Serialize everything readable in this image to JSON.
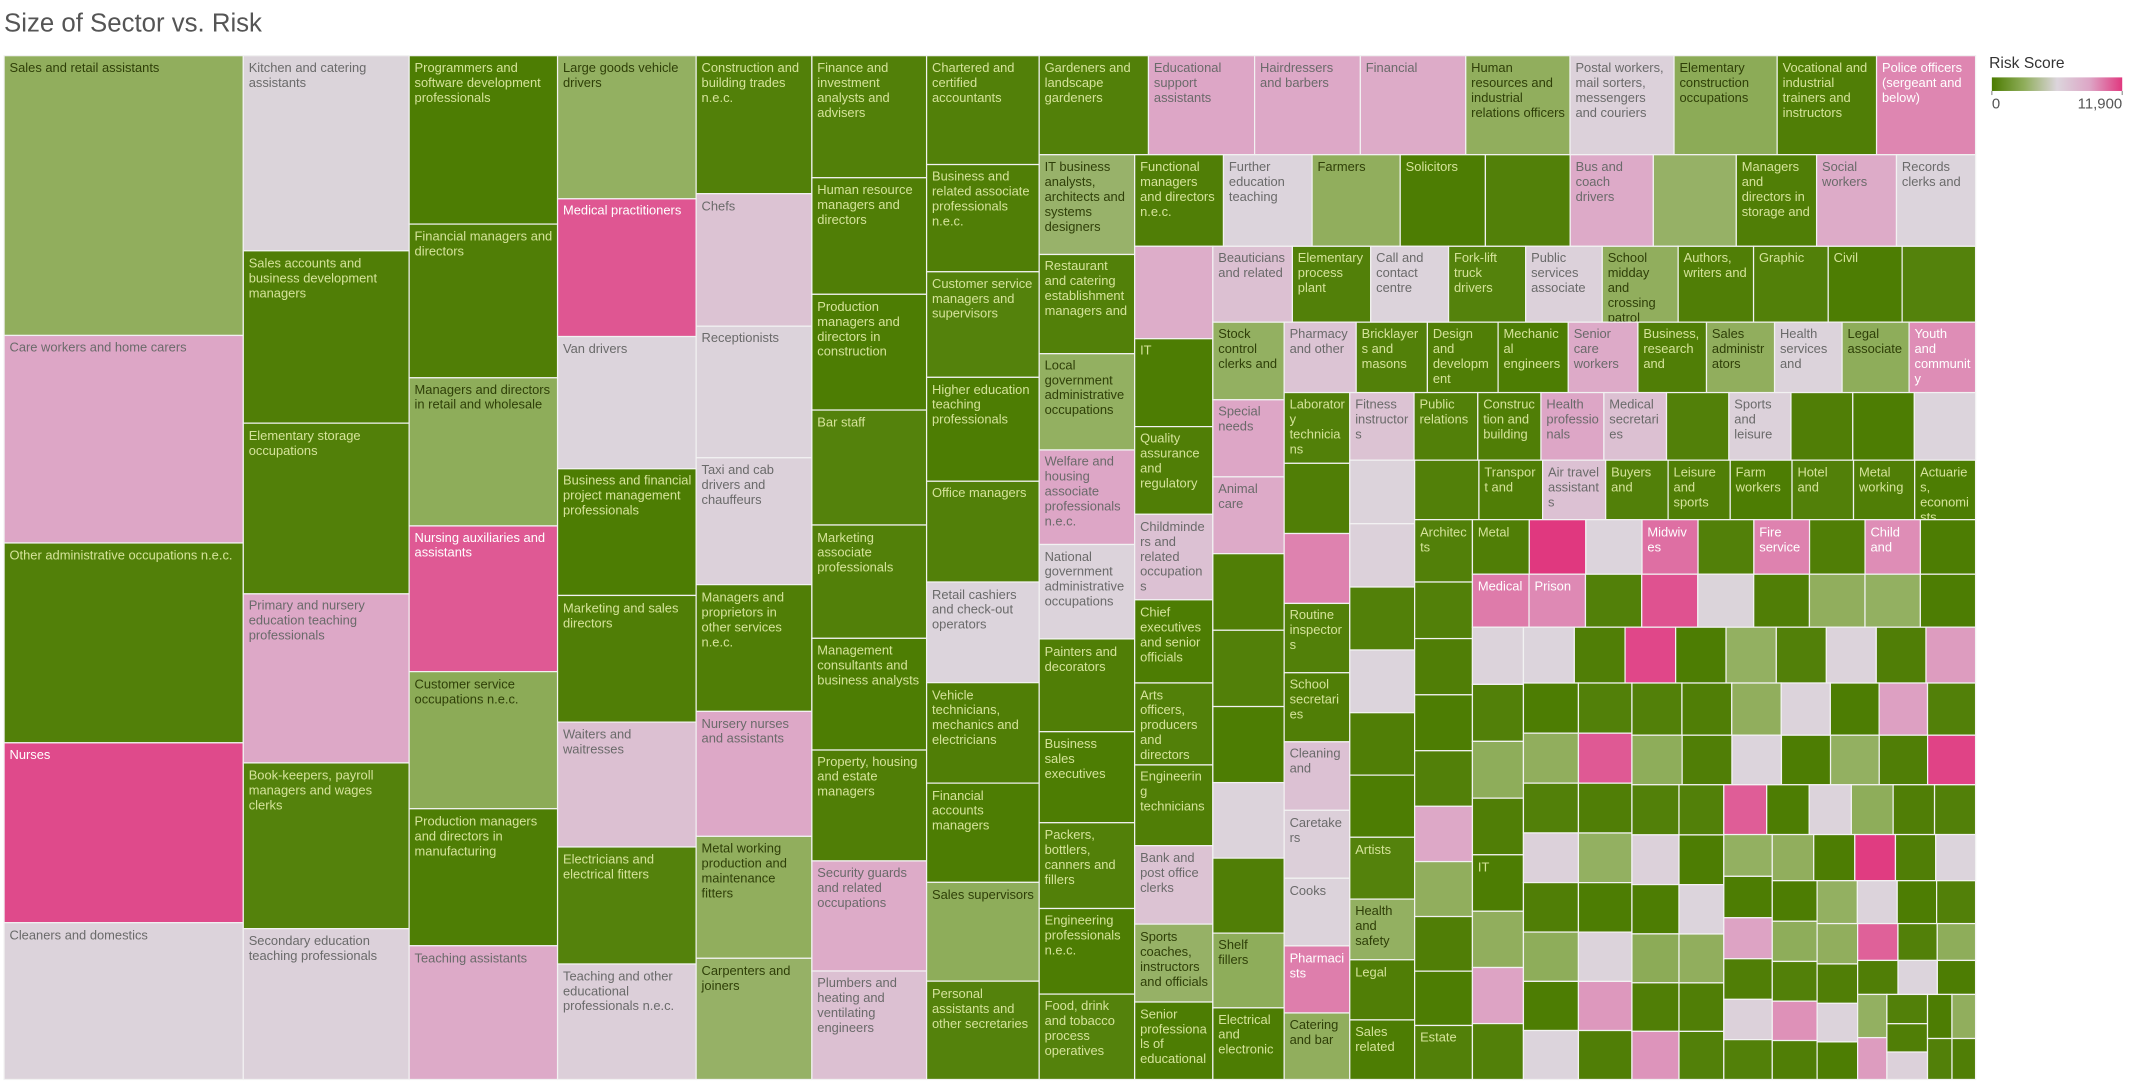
{
  "chart_data": {
    "type": "treemap",
    "title": "Size of Sector vs. Risk",
    "color_label": "Risk Score",
    "colors": [
      "#4b7b00",
      "#90ae5c",
      "#dcd5dc",
      "#dda6c6",
      "#e0387f"
    ],
    "color_lim": [
      0,
      11900
    ],
    "color_ticks": [
      0,
      {
        "value": 11900,
        "label": "11,900"
      }
    ],
    "categories": [
      "Sales and retail assistants",
      "Care workers and home carers",
      "Other administrative occupations n.e.c.",
      "Nurses",
      "Cleaners and domestics",
      "Kitchen and catering assistants",
      "Sales accounts and business development managers",
      "Elementary storage occupations",
      "Primary and nursery education teaching professionals",
      "Book-keepers, payroll managers and wages clerks",
      "Secondary education teaching professionals",
      "Programmers and software development professionals",
      "Financial managers and directors",
      "Managers and directors in retail and wholesale",
      "Nursing auxiliaries and assistants",
      "Customer service occupations n.e.c.",
      "Production managers and directors in manufacturing",
      "Teaching assistants",
      "Large goods vehicle drivers",
      "Medical practitioners",
      "Van drivers",
      "Business and financial project management professionals",
      "Marketing and sales directors",
      "Waiters and waitresses",
      "Electricians and electrical fitters",
      "Teaching and other educational professionals n.e.c.",
      "Construction and building trades n.e.c.",
      "Chefs",
      "Receptionists",
      "Taxi and cab drivers and chauffeurs",
      "Managers and proprietors in other services n.e.c.",
      "Nursery nurses and assistants",
      "Metal working production and maintenance fitters",
      "Carpenters and joiners",
      "Finance and investment analysts and advisers",
      "Human resource managers and directors",
      "Production managers and directors in construction",
      "Bar staff",
      "Marketing associate professionals",
      "Management consultants and business analysts",
      "Property, housing and estate managers",
      "Security guards and related occupations",
      "Plumbers and heating and ventilating engineers",
      "Chartered and certified accountants",
      "Business and related associate professionals n.e.c.",
      "Customer service managers and supervisors",
      "Higher education teaching professionals",
      "Office managers",
      "Retail cashiers and check-out operators",
      "Vehicle technicians, mechanics and electricians",
      "Financial accounts managers",
      "Sales supervisors",
      "Personal assistants and other secretaries",
      "Gardeners and landscape gardeners",
      "Educational support assistants",
      "Hairdressers and barbers",
      "Financial",
      "Human resources and industrial relations officers",
      "Postal workers, mail sorters, messengers and couriers",
      "Elementary construction occupations",
      "Vocational and industrial trainers and instructors",
      "Police officers (sergeant and below)",
      "IT business analysts, architects and systems designers",
      "Restaurant and catering establishment managers and",
      "Local government administrative occupations",
      "Welfare and housing associate professionals n.e.c.",
      "National government administrative occupations",
      "Painters and decorators",
      "Business sales executives",
      "Packers, bottlers, canners and fillers",
      "Engineering professionals n.e.c.",
      "Food, drink and tobacco process operatives",
      "Functional managers and directors n.e.c.",
      "Further education teaching",
      "Farmers",
      "Solicitors",
      null,
      "Bus and coach drivers",
      null,
      "Managers and directors in storage and",
      "Social workers",
      "Records clerks and",
      null,
      "IT",
      "Quality assurance and regulatory",
      "Childminders and related occupations",
      "Chief executives and senior officials",
      "Arts officers, producers and directors",
      "Engineering technicians",
      "Bank and post office clerks",
      "Sports coaches, instructors and officials",
      "Senior professionals of educational",
      "Beauticians and related",
      "Elementary process plant",
      "Call and contact centre",
      "Fork-lift truck drivers",
      "Public services associate",
      "School midday and crossing patrol",
      "Authors, writers and",
      "Graphic",
      "Civil",
      null,
      "Stock control clerks and",
      "Special needs",
      "Animal care",
      null,
      null,
      null,
      null,
      null,
      "Shelf fillers",
      "Electrical and electronic",
      "Pharmacy and other",
      "Bricklayers and masons",
      "Design and development",
      "Mechanical engineers",
      "Senior care workers",
      "Business, research and",
      "Sales administrators",
      "Health services and",
      "Legal associate",
      "Youth and community",
      "Laboratory technicians",
      null,
      null,
      "Routine inspectors",
      "School secretaries",
      "Cleaning and",
      "Caretakers",
      "Cooks",
      "Pharmacists",
      "Catering and bar",
      "Fitness instructors",
      "Public relations",
      "Construction and building",
      "Health professionals",
      "Medical secretaries",
      null,
      "Sports and leisure",
      null,
      null,
      null,
      null,
      null,
      null,
      null,
      null,
      null,
      "Artists",
      "Health and safety",
      "Legal",
      "Sales related",
      null,
      "Transport and",
      "Air travel assistants",
      "Buyers and",
      "Leisure and sports",
      "Farm workers",
      "Hotel and",
      "Metal working",
      "Actuaries, economists",
      "Architects",
      null,
      null,
      null,
      null,
      null,
      null,
      null,
      null,
      "Estate",
      "Metal",
      null,
      null,
      "Midwives",
      null,
      "Fire service",
      null,
      "Child and",
      null,
      "Medical",
      "Prison",
      null,
      null,
      null,
      null,
      null,
      null,
      null,
      null,
      null,
      null,
      null,
      "IT",
      null,
      null,
      null,
      null,
      null,
      null,
      null,
      null,
      null,
      null,
      null,
      null,
      null,
      null,
      null,
      null,
      null,
      null,
      null,
      null,
      null,
      null,
      null,
      null,
      null,
      null,
      null,
      null,
      null,
      null,
      null,
      null,
      null,
      null,
      null,
      null,
      null,
      null,
      null,
      null,
      null,
      null,
      null,
      null,
      null,
      null,
      null,
      null,
      null,
      null,
      null,
      null,
      null,
      null,
      null,
      null,
      null,
      null,
      null,
      null,
      null,
      null,
      null,
      null,
      null,
      null,
      null,
      null,
      null,
      null,
      null,
      null,
      null,
      null,
      null,
      null,
      null,
      null,
      null,
      null,
      null,
      null,
      null,
      null,
      null,
      null,
      null,
      null,
      null,
      null,
      null,
      null,
      null,
      null,
      null,
      null,
      null,
      null,
      null
    ],
    "sizes": [
      36036,
      26730,
      25740,
      23166,
      20196,
      17424,
      15392,
      15244,
      15096,
      14800,
      13468,
      13460,
      12284,
      11840,
      11645,
      10960,
      10950,
      10686,
      10680,
      10275,
      9864,
      9453,
      9450,
      9316,
      8732,
      8614,
      8600,
      8260,
      8200,
      7906,
      7900,
      7788,
      7600,
      7552,
      7540,
      7200,
      7150,
      7100,
      7000,
      6900,
      6850,
      6800,
      6700,
      6600,
      6500,
      6400,
      6300,
      6110,
      6100,
      6090,
      6016,
      5990,
      5960,
      5828,
      5660,
      5640,
      5620,
      5560,
      5546,
      5500,
      5300,
      5280,
      5130,
      5100,
      4950,
      4860,
      4855,
      4770,
      4680,
      4410,
      4400,
      4390,
      4380,
      4370,
      4346,
      4200,
      4182,
      4100,
      4090,
      3960,
      3940,
      3900,
      3890,
      3700,
      3690,
      3600,
      3500,
      3450,
      3400,
      3300,
      3280,
      3260,
      3250,
      3200,
      3180,
      3150,
      3130,
      3100,
      3080,
      3050,
      3020,
      3000,
      2980,
      2960,
      2950,
      2940,
      2930,
      2920,
      2900,
      2880,
      2870,
      2750,
      2730,
      2700,
      2680,
      2660,
      2640,
      2600,
      2580,
      2560,
      2540,
      2520,
      2500,
      2480,
      2470,
      2450,
      2440,
      2420,
      2400,
      2390,
      2370,
      2350,
      2340,
      2320,
      2300,
      2290,
      2280,
      2270,
      2260,
      2250,
      2240,
      2230,
      2220,
      2210,
      2200,
      2190,
      2180,
      2170,
      2160,
      2120,
      2100,
      2080,
      2060,
      2040,
      2020,
      2000,
      1990,
      1980,
      1970,
      1960,
      1950,
      1940,
      1760,
      1750,
      1740,
      1730,
      1720,
      1710,
      1700,
      1690,
      1680,
      1670,
      1660,
      1650,
      1645,
      1640,
      1635,
      1630,
      1625,
      1620,
      1615,
      1610,
      1605,
      1600,
      1595,
      1590,
      1585,
      1580,
      1575,
      1570,
      1565,
      1560,
      1555,
      1550,
      1545,
      1540,
      1535,
      1530,
      1525,
      1520,
      1515,
      1510,
      1505,
      1500,
      1495,
      1490,
      1485,
      1480,
      1475,
      1470,
      1465,
      1460,
      1455,
      1450,
      1445,
      1440,
      1435,
      1430,
      1425,
      1420,
      1415,
      1410,
      1405,
      1400,
      1390,
      1380,
      1370,
      1360,
      1350,
      1340,
      1330,
      1320,
      1310,
      1300,
      1290,
      1280,
      1270,
      1260,
      1250,
      1240,
      1230,
      1220,
      1210,
      1200,
      1190,
      1180,
      1170,
      1160,
      1150,
      1140,
      1130,
      1120,
      1110,
      1100,
      1090,
      1080,
      1070,
      1060,
      1050,
      1040,
      1030,
      1020,
      1010,
      1000,
      990,
      980,
      970,
      960,
      950,
      940,
      930,
      920,
      910,
      900,
      880,
      860,
      840,
      820,
      800,
      780,
      760,
      740,
      720,
      700,
      680,
      660,
      640,
      620,
      600,
      580,
      560,
      540,
      520
    ],
    "risk_scores": [
      3000,
      8900,
      300,
      11400,
      6100,
      5900,
      200,
      300,
      8800,
      400,
      6200,
      100,
      200,
      2900,
      11000,
      2800,
      150,
      8700,
      3100,
      11100,
      6000,
      100,
      200,
      7300,
      400,
      6300,
      300,
      7100,
      6100,
      6200,
      200,
      8800,
      3000,
      3200,
      300,
      200,
      100,
      400,
      300,
      100,
      200,
      8600,
      7300,
      300,
      200,
      400,
      100,
      300,
      6000,
      200,
      100,
      2900,
      400,
      300,
      8900,
      8800,
      8600,
      3000,
      6200,
      2800,
      200,
      9800,
      3300,
      300,
      3100,
      8900,
      6100,
      200,
      100,
      300,
      100,
      400,
      200,
      6000,
      3000,
      100,
      300,
      8700,
      3200,
      200,
      8600,
      6000,
      8500,
      100,
      200,
      7200,
      100,
      300,
      200,
      7100,
      3200,
      100,
      7300,
      300,
      6100,
      400,
      6200,
      3000,
      200,
      300,
      100,
      400,
      3100,
      8900,
      8700,
      200,
      300,
      100,
      6100,
      200,
      2900,
      100,
      7000,
      300,
      200,
      100,
      8700,
      200,
      3000,
      6100,
      2900,
      9600,
      300,
      200,
      9900,
      300,
      200,
      7200,
      6300,
      6100,
      10000,
      3000,
      7100,
      300,
      200,
      8900,
      7300,
      300,
      6200,
      200,
      100,
      6000,
      6100,
      6200,
      300,
      6000,
      200,
      100,
      400,
      3100,
      200,
      100,
      300,
      200,
      7200,
      300,
      200,
      100,
      300,
      200,
      100,
      300,
      300,
      200,
      100,
      300,
      8800,
      3000,
      200,
      100,
      300,
      200,
      11900,
      6000,
      10400,
      300,
      9900,
      200,
      9600,
      100,
      10100,
      9700,
      300,
      11200,
      5900,
      200,
      3000,
      3100,
      100,
      6100,
      300,
      2900,
      200,
      100,
      3000,
      9000,
      300,
      6000,
      200,
      11500,
      100,
      3100,
      300,
      6100,
      200,
      9200,
      100,
      3000,
      300,
      6200,
      200,
      2900,
      100,
      6000,
      300,
      11000,
      200,
      3100,
      100,
      6100,
      9300,
      200,
      300,
      200,
      3000,
      6100,
      100,
      9100,
      300,
      2900,
      200,
      6000,
      100,
      3100,
      200,
      11600,
      300,
      6200,
      100,
      2800,
      200,
      9400,
      300,
      100,
      6000,
      3000,
      200,
      300,
      10900,
      100,
      6100,
      2900,
      200,
      300,
      3100,
      100,
      9000,
      200,
      6200,
      300,
      3000,
      100,
      11800,
      200,
      6000,
      100,
      2900,
      300,
      9500,
      200,
      3100,
      6100,
      100,
      300,
      3000,
      200,
      6100,
      100,
      10800,
      300,
      2900,
      200,
      6000,
      100,
      3100,
      9200,
      300,
      200,
      6200,
      100,
      3000,
      300,
      200
    ]
  }
}
